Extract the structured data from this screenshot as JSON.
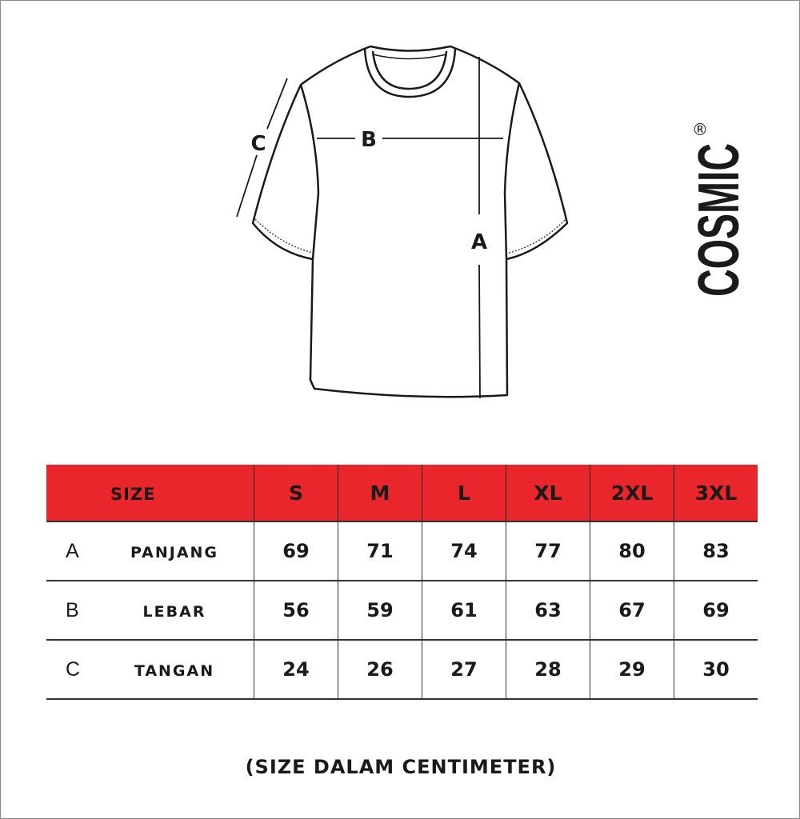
{
  "diagram": {
    "labels": {
      "a": "A",
      "b": "B",
      "c": "C"
    }
  },
  "brand": {
    "name": "COSMIC",
    "mark": "®"
  },
  "table": {
    "header_color": "#e8262b",
    "header_label": "SIZE",
    "sizes": [
      "S",
      "M",
      "L",
      "XL",
      "2XL",
      "3XL"
    ],
    "rows": [
      {
        "letter": "A",
        "name": "PANJANG",
        "values": [
          "69",
          "71",
          "74",
          "77",
          "80",
          "83"
        ]
      },
      {
        "letter": "B",
        "name": "LEBAR",
        "values": [
          "56",
          "59",
          "61",
          "63",
          "67",
          "69"
        ]
      },
      {
        "letter": "C",
        "name": "TANGAN",
        "values": [
          "24",
          "26",
          "27",
          "28",
          "29",
          "30"
        ]
      }
    ]
  },
  "footer": "(SIZE DALAM CENTIMETER)"
}
